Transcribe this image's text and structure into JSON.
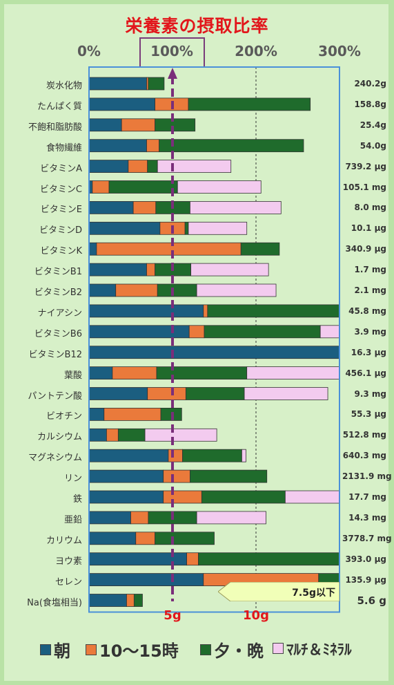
{
  "title": "栄養素の摂取比率",
  "colors": {
    "breakfast": "#1b5e80",
    "midday": "#ea7a3b",
    "evening": "#1f6b2c",
    "supplement": "#f3cbef",
    "title": "#e2161b",
    "frame": "#4a90d9",
    "marker": "#7a2e7a",
    "limit": "#f1ffb8"
  },
  "axis": {
    "ticks": [
      "0%",
      "100%",
      "200%",
      "300%"
    ],
    "max_percent": 300,
    "gridlines": [
      100,
      200
    ]
  },
  "salt_axis": {
    "ticks": [
      "5g",
      "10g"
    ]
  },
  "legend": [
    {
      "key": "breakfast",
      "label": "朝"
    },
    {
      "key": "midday",
      "label": "10～15時"
    },
    {
      "key": "evening",
      "label": "夕・晩"
    },
    {
      "key": "supplement",
      "label": "ﾏﾙﾁ＆ﾐﾈﾗﾙ"
    }
  ],
  "chart_data": {
    "type": "bar",
    "title": "栄養素の摂取比率",
    "xlim": [
      0,
      300
    ],
    "categories": [
      "炭水化物",
      "たんぱく質",
      "不飽和脂肪酸",
      "食物繊維",
      "ビタミンA",
      "ビタミンC",
      "ビタミンE",
      "ビタミンD",
      "ビタミンK",
      "ビタミンB1",
      "ビタミンB2",
      "ナイアシン",
      "ビタミンB6",
      "ビタミンB12",
      "葉酸",
      "パントテン酸",
      "ビオチン",
      "カルシウム",
      "マグネシウム",
      "リン",
      "鉄",
      "亜鉛",
      "カリウム",
      "ヨウ素",
      "セレン",
      "Na(食塩相当)"
    ],
    "amounts": [
      "240.2g",
      "158.8g",
      "25.4g",
      "54.0g",
      "739.2 μg",
      "105.1 mg",
      "8.0 mg",
      "10.1 μg",
      "340.9 μg",
      "1.7 mg",
      "2.1 mg",
      "45.8 mg",
      "3.9 mg",
      "16.3 μg",
      "456.1 μg",
      "9.3 mg",
      "55.3 μg",
      "512.8 mg",
      "640.3 mg",
      "2131.9 mg",
      "17.7 mg",
      "14.3 mg",
      "3778.7 mg",
      "393.0 μg",
      "135.9 μg",
      "5.6 g"
    ],
    "series": [
      {
        "name": "朝",
        "values": [
          69,
          79,
          39,
          69,
          47,
          4,
          53,
          85,
          9,
          69,
          32,
          137,
          120,
          300,
          28,
          70,
          18,
          21,
          95,
          89,
          89,
          50,
          56,
          117,
          137,
          45
        ]
      },
      {
        "name": "10～15時",
        "values": [
          2,
          40,
          40,
          15,
          23,
          20,
          27,
          30,
          173,
          10,
          50,
          5,
          18,
          0,
          53,
          46,
          68,
          14,
          17,
          32,
          46,
          21,
          23,
          14,
          138,
          9
        ]
      },
      {
        "name": "夕・晩",
        "values": [
          19,
          146,
          48,
          173,
          12,
          82,
          41,
          4,
          46,
          43,
          47,
          158,
          139,
          0,
          108,
          70,
          25,
          32,
          71,
          92,
          100,
          58,
          71,
          169,
          26,
          10
        ]
      },
      {
        "name": "ﾏﾙﾁ＆ﾐﾈﾗﾙ",
        "values": [
          0,
          0,
          0,
          0,
          88,
          100,
          109,
          70,
          0,
          93,
          95,
          0,
          23,
          0,
          111,
          100,
          0,
          86,
          5,
          0,
          65,
          83,
          0,
          0,
          0,
          0
        ]
      }
    ],
    "salt_limit_label": "7.5g以下"
  }
}
